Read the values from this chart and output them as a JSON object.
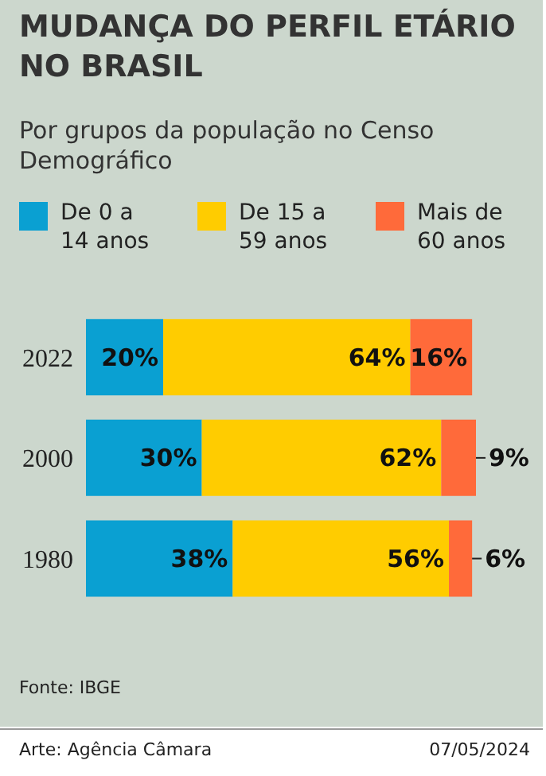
{
  "chart_data": {
    "type": "bar",
    "orientation": "horizontal",
    "stacked": true,
    "title": "MUDANÇA DO PERFIL ETÁRIO NO BRASIL",
    "subtitle": "Por grupos da população no Censo Demográfico",
    "categories": [
      "2022",
      "2000",
      "1980"
    ],
    "series": [
      {
        "name": "De 0 a 14 anos",
        "color": "#0aa0d2",
        "values": [
          20,
          30,
          38
        ],
        "value_labels": [
          "20%",
          "30%",
          "38%"
        ]
      },
      {
        "name": "De 15 a 59 anos",
        "color": "#ffcc00",
        "values": [
          64,
          62,
          56
        ],
        "value_labels": [
          "64%",
          "62%",
          "56%"
        ]
      },
      {
        "name": "Mais de 60 anos",
        "color": "#ff6a3a",
        "values": [
          16,
          9,
          6
        ],
        "value_labels": [
          "16%",
          "9%",
          "6%"
        ]
      }
    ],
    "legend": "top",
    "tick_labels": "y",
    "annotations": [
      "Fonte: IBGE",
      "Arte: Agência Câmara",
      "07/05/2024"
    ]
  }
}
